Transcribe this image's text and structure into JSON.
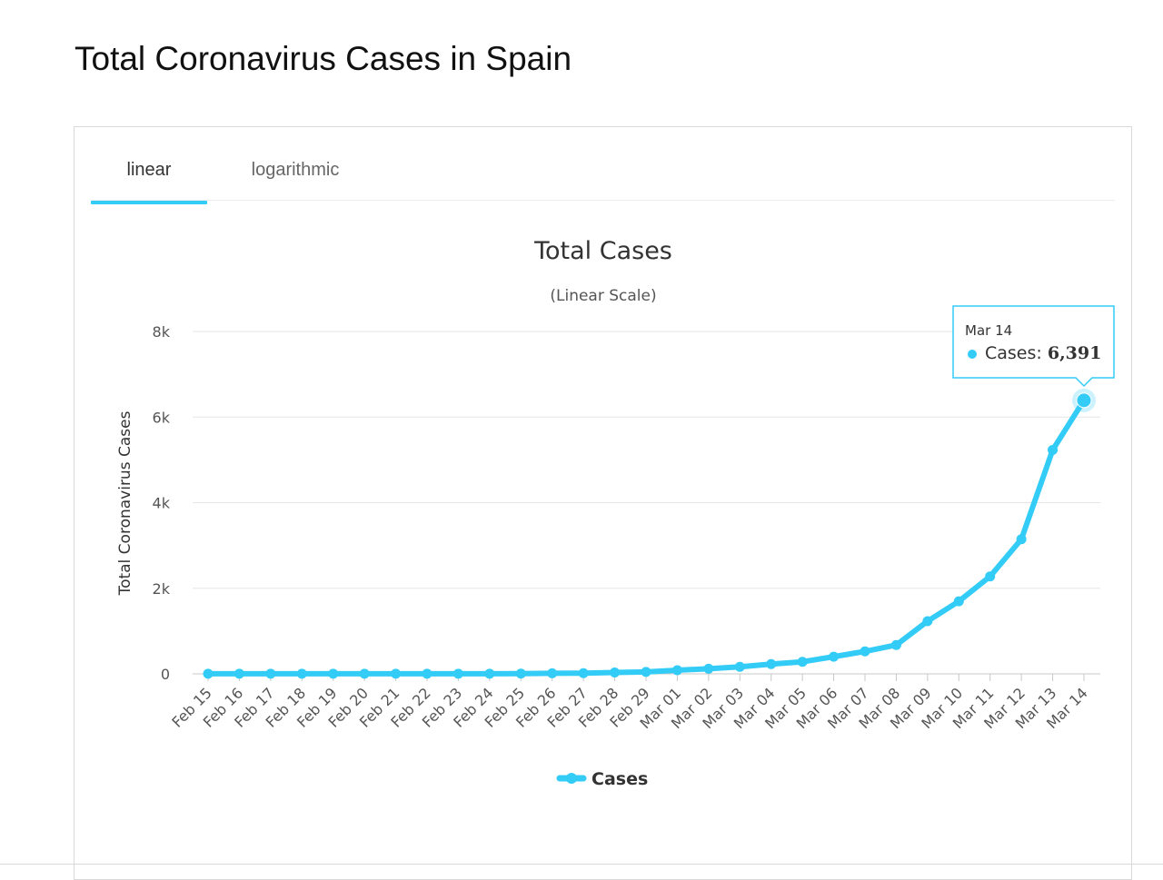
{
  "page": {
    "title": "Total Coronavirus Cases in Spain"
  },
  "tabs": [
    {
      "label": "linear",
      "active": true
    },
    {
      "label": "logarithmic",
      "active": false
    }
  ],
  "chart_data": {
    "type": "line",
    "title": "Total Cases",
    "subtitle": "(Linear Scale)",
    "ylabel": "Total Coronavirus Cases",
    "xlabel": "",
    "ylim": [
      0,
      8000
    ],
    "yticks": [
      0,
      2000,
      4000,
      6000,
      8000
    ],
    "ytick_labels": [
      "0",
      "2k",
      "4k",
      "6k",
      "8k"
    ],
    "grid": true,
    "legend_position": "bottom-center",
    "categories": [
      "Feb 15",
      "Feb 16",
      "Feb 17",
      "Feb 18",
      "Feb 19",
      "Feb 20",
      "Feb 21",
      "Feb 22",
      "Feb 23",
      "Feb 24",
      "Feb 25",
      "Feb 26",
      "Feb 27",
      "Feb 28",
      "Feb 29",
      "Mar 01",
      "Mar 02",
      "Mar 03",
      "Mar 04",
      "Mar 05",
      "Mar 06",
      "Mar 07",
      "Mar 08",
      "Mar 09",
      "Mar 10",
      "Mar 11",
      "Mar 12",
      "Mar 13",
      "Mar 14"
    ],
    "series": [
      {
        "name": "Cases",
        "color": "#33ccf7",
        "values": [
          2,
          2,
          2,
          2,
          2,
          2,
          2,
          2,
          2,
          2,
          6,
          13,
          15,
          32,
          45,
          84,
          120,
          165,
          228,
          282,
          401,
          525,
          674,
          1231,
          1695,
          2277,
          3146,
          5232,
          6391
        ]
      }
    ],
    "tooltip": {
      "date": "Mar 14",
      "label": "Cases: ",
      "value": "6,391"
    }
  }
}
